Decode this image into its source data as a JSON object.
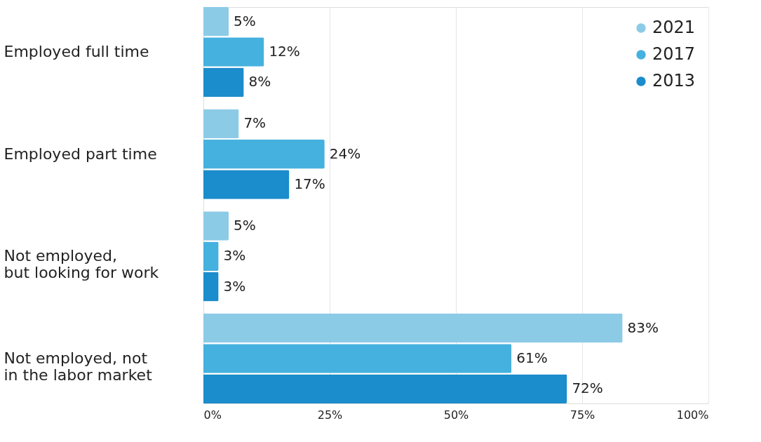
{
  "chart_data": {
    "type": "bar",
    "orientation": "horizontal",
    "categories": [
      "Employed full time",
      "Employed part time",
      "Not employed,\nbut looking for work",
      "Not employed, not\nin the labor market"
    ],
    "series": [
      {
        "name": "2021",
        "color": "#8ccbe6",
        "values": [
          5,
          7,
          5,
          83
        ],
        "value_labels": [
          "5%",
          "7%",
          "5%",
          "83%"
        ]
      },
      {
        "name": "2017",
        "color": "#45b1df",
        "values": [
          12,
          24,
          3,
          61
        ],
        "value_labels": [
          "12%",
          "24%",
          "3%",
          "61%"
        ]
      },
      {
        "name": "2013",
        "color": "#1b8ccc",
        "values": [
          8,
          17,
          3,
          72
        ],
        "value_labels": [
          "8%",
          "17%",
          "3%",
          "72%"
        ]
      }
    ],
    "xlim": [
      0,
      100
    ],
    "xticks": [
      {
        "value": 0,
        "label": "0%"
      },
      {
        "value": 25,
        "label": "25%"
      },
      {
        "value": 50,
        "label": "50%"
      },
      {
        "value": 75,
        "label": "75%"
      },
      {
        "value": 100,
        "label": "100%"
      }
    ],
    "grid": "x",
    "legend": "top right"
  }
}
